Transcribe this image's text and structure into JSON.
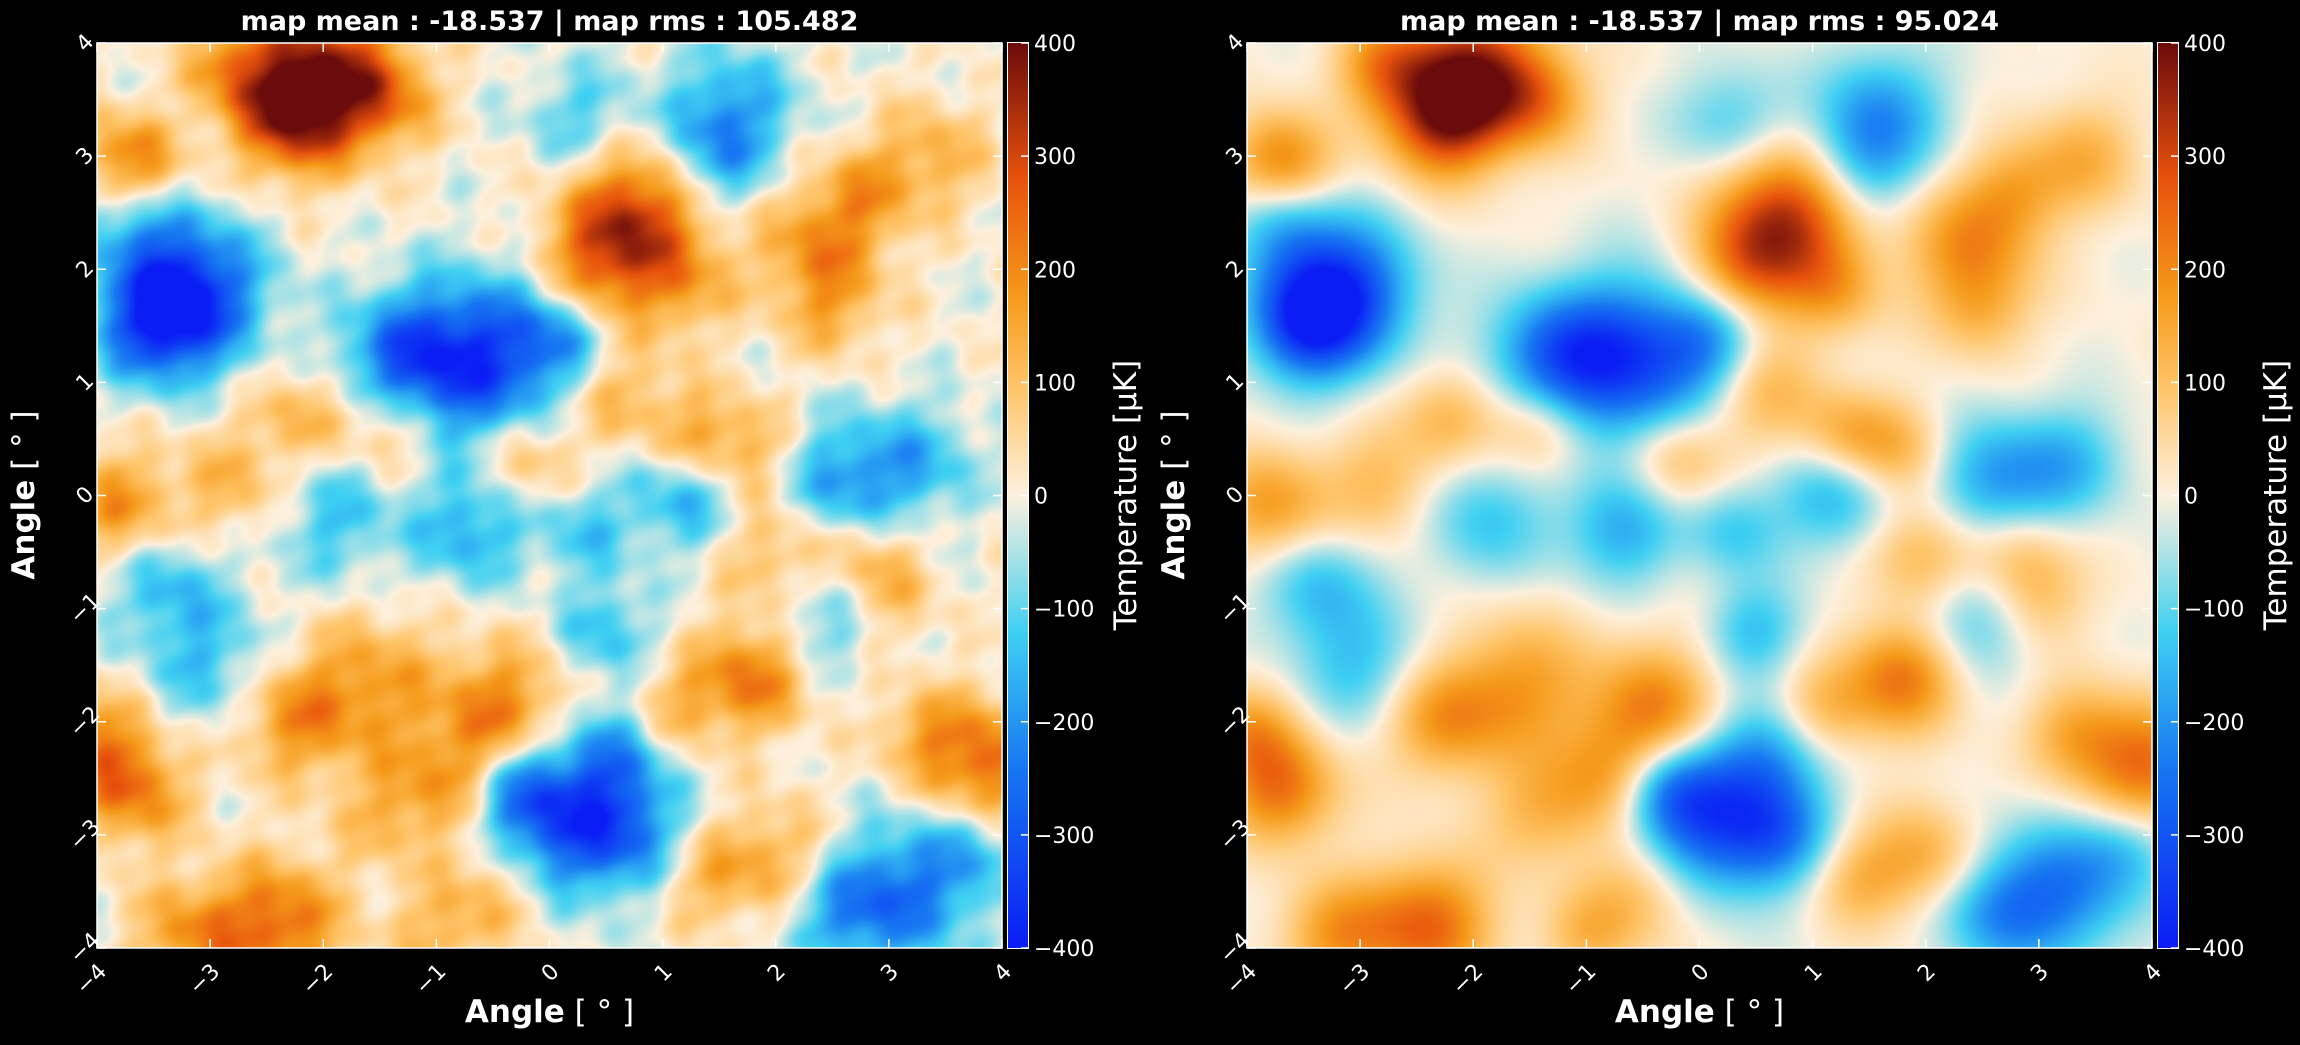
{
  "chart_data": [
    {
      "type": "heatmap",
      "title": "map mean : -18.537 | map rms : 105.482",
      "xlabel_bold": "Angle",
      "xlabel_unit": " [ ° ]",
      "ylabel_bold": "Angle",
      "ylabel_unit": " [ ° ]",
      "xlim": [
        -4,
        4
      ],
      "ylim": [
        -4,
        4
      ],
      "xticks": [
        "−4",
        "−3",
        "−2",
        "−1",
        "0",
        "1",
        "2",
        "3",
        "4"
      ],
      "yticks": [
        "−4",
        "−3",
        "−2",
        "−1",
        "0",
        "1",
        "2",
        "3",
        "4"
      ],
      "colorbar": {
        "label": "Temperature [μK]",
        "range": [
          -400,
          400
        ],
        "ticks": [
          "400",
          "300",
          "200",
          "100",
          "0",
          "−100",
          "−200",
          "−300",
          "−400"
        ]
      },
      "smoothing": "sharp",
      "blobs": [
        [
          -2.0,
          3.7,
          360,
          0.45
        ],
        [
          -2.3,
          3.3,
          230,
          0.35
        ],
        [
          -2.8,
          3.8,
          170,
          0.3
        ],
        [
          -1.4,
          3.5,
          140,
          0.3
        ],
        [
          0.8,
          2.5,
          320,
          0.45
        ],
        [
          0.4,
          2.0,
          180,
          0.35
        ],
        [
          1.2,
          1.8,
          120,
          0.3
        ],
        [
          2.4,
          2.2,
          190,
          0.4
        ],
        [
          2.8,
          2.7,
          120,
          0.3
        ],
        [
          3.4,
          3.0,
          130,
          0.35
        ],
        [
          2.5,
          1.6,
          100,
          0.3
        ],
        [
          -3.2,
          1.8,
          -360,
          0.45
        ],
        [
          -3.5,
          1.5,
          -230,
          0.35
        ],
        [
          -3.7,
          2.4,
          -120,
          0.3
        ],
        [
          -0.6,
          1.2,
          -320,
          0.5
        ],
        [
          -1.3,
          1.2,
          -230,
          0.4
        ],
        [
          0.1,
          1.4,
          -150,
          0.3
        ],
        [
          0.3,
          3.3,
          -130,
          0.35
        ],
        [
          1.6,
          3.4,
          -180,
          0.4
        ],
        [
          1.4,
          2.9,
          -150,
          0.35
        ],
        [
          -3.8,
          -0.1,
          180,
          0.35
        ],
        [
          -2.2,
          0.7,
          130,
          0.3
        ],
        [
          -2.8,
          0.1,
          120,
          0.35
        ],
        [
          -3.8,
          3.0,
          130,
          0.3
        ],
        [
          -3.6,
          2.9,
          110,
          0.3
        ],
        [
          -1.4,
          0.6,
          140,
          0.3
        ],
        [
          -0.2,
          0.3,
          130,
          0.3
        ],
        [
          0.6,
          0.9,
          120,
          0.35
        ],
        [
          1.3,
          0.5,
          150,
          0.3
        ],
        [
          1.8,
          0.4,
          120,
          0.3
        ],
        [
          2.0,
          -0.5,
          140,
          0.35
        ],
        [
          2.8,
          -0.5,
          110,
          0.3
        ],
        [
          1.2,
          0.0,
          -170,
          0.35
        ],
        [
          2.6,
          0.1,
          -200,
          0.4
        ],
        [
          3.3,
          0.3,
          -130,
          0.35
        ],
        [
          -1.9,
          -0.2,
          -130,
          0.4
        ],
        [
          -0.7,
          -0.3,
          -170,
          0.35
        ],
        [
          0.3,
          -0.3,
          -120,
          0.3
        ],
        [
          -3.4,
          -0.8,
          -140,
          0.35
        ],
        [
          -3.0,
          -1.5,
          -130,
          0.4
        ],
        [
          -1.6,
          -1.7,
          170,
          0.45
        ],
        [
          -2.3,
          -2.0,
          170,
          0.35
        ],
        [
          -0.4,
          -1.9,
          210,
          0.4
        ],
        [
          -0.8,
          -2.5,
          140,
          0.35
        ],
        [
          -1.4,
          -2.8,
          120,
          0.35
        ],
        [
          1.8,
          -1.6,
          230,
          0.35
        ],
        [
          1.1,
          -1.9,
          130,
          0.3
        ],
        [
          3.9,
          -2.4,
          250,
          0.4
        ],
        [
          3.3,
          -2.1,
          120,
          0.3
        ],
        [
          -3.7,
          -2.6,
          230,
          0.35
        ],
        [
          -4.0,
          -2.1,
          150,
          0.3
        ],
        [
          -2.4,
          -3.8,
          250,
          0.4
        ],
        [
          -3.2,
          -3.9,
          170,
          0.35
        ],
        [
          0.6,
          -2.3,
          -170,
          0.35
        ],
        [
          0.5,
          -1.2,
          -140,
          0.3
        ],
        [
          2.4,
          -1.1,
          -130,
          0.35
        ],
        [
          0.1,
          -2.9,
          -280,
          0.45
        ],
        [
          0.7,
          -3.0,
          -180,
          0.35
        ],
        [
          -0.3,
          -2.6,
          -170,
          0.3
        ],
        [
          2.0,
          -3.2,
          140,
          0.35
        ],
        [
          1.4,
          -3.4,
          120,
          0.3
        ],
        [
          -0.5,
          -3.5,
          120,
          0.35
        ],
        [
          3.2,
          -3.5,
          -220,
          0.45
        ],
        [
          2.6,
          -3.7,
          -160,
          0.35
        ],
        [
          3.8,
          -3.1,
          -120,
          0.3
        ],
        [
          -1.0,
          -3.9,
          110,
          0.3
        ],
        [
          3.0,
          -0.9,
          100,
          0.3
        ]
      ]
    },
    {
      "type": "heatmap",
      "title": "map mean : -18.537 | map rms : 95.024",
      "xlabel_bold": "Angle",
      "xlabel_unit": " [ ° ]",
      "ylabel_bold": "Angle",
      "ylabel_unit": " [ ° ]",
      "xlim": [
        -4,
        4
      ],
      "ylim": [
        -4,
        4
      ],
      "xticks": [
        "−4",
        "−3",
        "−2",
        "−1",
        "0",
        "1",
        "2",
        "3",
        "4"
      ],
      "yticks": [
        "−4",
        "−3",
        "−2",
        "−1",
        "0",
        "1",
        "2",
        "3",
        "4"
      ],
      "colorbar": {
        "label": "Temperature [μK]",
        "range": [
          -400,
          400
        ],
        "ticks": [
          "400",
          "300",
          "200",
          "100",
          "0",
          "−100",
          "−200",
          "−300",
          "−400"
        ]
      },
      "smoothing": "smooth",
      "blobs": [
        [
          -2.0,
          3.7,
          360,
          0.45
        ],
        [
          -2.3,
          3.3,
          230,
          0.35
        ],
        [
          -2.8,
          3.8,
          170,
          0.3
        ],
        [
          -1.4,
          3.5,
          140,
          0.3
        ],
        [
          0.8,
          2.5,
          320,
          0.45
        ],
        [
          0.4,
          2.0,
          180,
          0.35
        ],
        [
          1.2,
          1.8,
          120,
          0.3
        ],
        [
          2.4,
          2.2,
          190,
          0.4
        ],
        [
          2.8,
          2.7,
          120,
          0.3
        ],
        [
          3.4,
          3.0,
          130,
          0.35
        ],
        [
          2.5,
          1.6,
          100,
          0.3
        ],
        [
          -3.2,
          1.8,
          -360,
          0.45
        ],
        [
          -3.5,
          1.5,
          -230,
          0.35
        ],
        [
          -3.7,
          2.4,
          -120,
          0.3
        ],
        [
          -0.6,
          1.2,
          -320,
          0.5
        ],
        [
          -1.3,
          1.2,
          -230,
          0.4
        ],
        [
          0.1,
          1.4,
          -150,
          0.3
        ],
        [
          0.3,
          3.3,
          -130,
          0.35
        ],
        [
          1.6,
          3.4,
          -180,
          0.4
        ],
        [
          1.4,
          2.9,
          -150,
          0.35
        ],
        [
          -3.8,
          -0.1,
          180,
          0.35
        ],
        [
          -2.2,
          0.7,
          130,
          0.3
        ],
        [
          -2.8,
          0.1,
          120,
          0.35
        ],
        [
          -3.8,
          3.0,
          130,
          0.3
        ],
        [
          -3.6,
          2.9,
          110,
          0.3
        ],
        [
          -1.4,
          0.6,
          140,
          0.3
        ],
        [
          -0.2,
          0.3,
          130,
          0.3
        ],
        [
          0.6,
          0.9,
          120,
          0.35
        ],
        [
          1.3,
          0.5,
          150,
          0.3
        ],
        [
          1.8,
          0.4,
          120,
          0.3
        ],
        [
          2.0,
          -0.5,
          140,
          0.35
        ],
        [
          2.8,
          -0.5,
          110,
          0.3
        ],
        [
          1.2,
          0.0,
          -170,
          0.35
        ],
        [
          2.6,
          0.1,
          -200,
          0.4
        ],
        [
          3.3,
          0.3,
          -130,
          0.35
        ],
        [
          -1.9,
          -0.2,
          -130,
          0.4
        ],
        [
          -0.7,
          -0.3,
          -170,
          0.35
        ],
        [
          0.3,
          -0.3,
          -120,
          0.3
        ],
        [
          -3.4,
          -0.8,
          -140,
          0.35
        ],
        [
          -3.0,
          -1.5,
          -130,
          0.4
        ],
        [
          -1.6,
          -1.7,
          170,
          0.45
        ],
        [
          -2.3,
          -2.0,
          170,
          0.35
        ],
        [
          -0.4,
          -1.9,
          210,
          0.4
        ],
        [
          -0.8,
          -2.5,
          140,
          0.35
        ],
        [
          -1.4,
          -2.8,
          120,
          0.35
        ],
        [
          1.8,
          -1.6,
          230,
          0.35
        ],
        [
          1.1,
          -1.9,
          130,
          0.3
        ],
        [
          3.9,
          -2.4,
          250,
          0.4
        ],
        [
          3.3,
          -2.1,
          120,
          0.3
        ],
        [
          -3.7,
          -2.6,
          230,
          0.35
        ],
        [
          -4.0,
          -2.1,
          150,
          0.3
        ],
        [
          -2.4,
          -3.8,
          250,
          0.4
        ],
        [
          -3.2,
          -3.9,
          170,
          0.35
        ],
        [
          0.6,
          -2.3,
          -170,
          0.35
        ],
        [
          0.5,
          -1.2,
          -140,
          0.3
        ],
        [
          2.4,
          -1.1,
          -130,
          0.35
        ],
        [
          0.1,
          -2.9,
          -280,
          0.45
        ],
        [
          0.7,
          -3.0,
          -180,
          0.35
        ],
        [
          -0.3,
          -2.6,
          -170,
          0.3
        ],
        [
          2.0,
          -3.2,
          140,
          0.35
        ],
        [
          1.4,
          -3.4,
          120,
          0.3
        ],
        [
          -0.5,
          -3.5,
          120,
          0.35
        ],
        [
          3.2,
          -3.5,
          -220,
          0.45
        ],
        [
          2.6,
          -3.7,
          -160,
          0.35
        ],
        [
          3.8,
          -3.1,
          -120,
          0.3
        ],
        [
          -1.0,
          -3.9,
          110,
          0.3
        ],
        [
          3.0,
          -0.9,
          100,
          0.3
        ]
      ]
    }
  ],
  "colors": {
    "background": "#000000",
    "text": "#ffffff"
  }
}
